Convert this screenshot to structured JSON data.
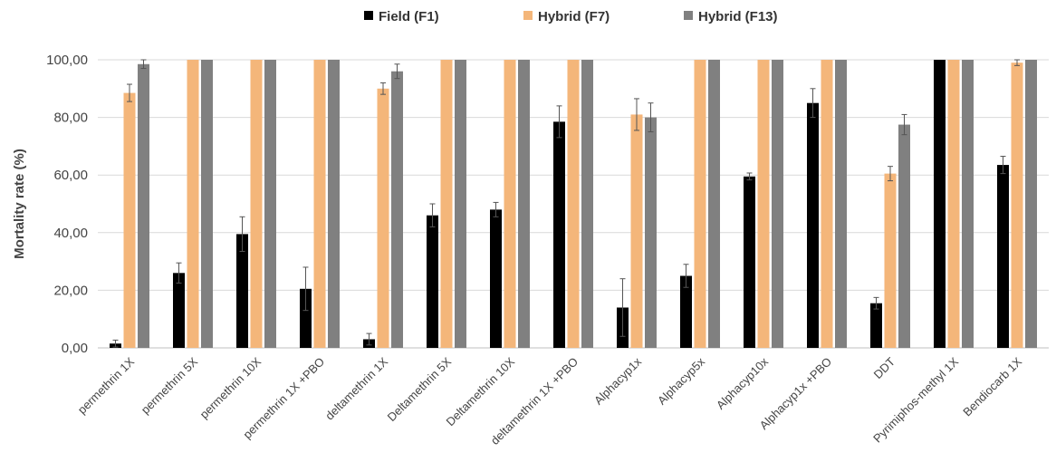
{
  "chart_data": {
    "type": "bar",
    "title": "",
    "xlabel": "",
    "ylabel": "Mortality rate (%)",
    "ylim": [
      0,
      100
    ],
    "yticks": [
      "0,00",
      "20,00",
      "40,00",
      "60,00",
      "80,00",
      "100,00"
    ],
    "grid": "horizontal",
    "legend_position": "top",
    "categories": [
      "permethrin 1X",
      "permethrin 5X",
      "permethrin 10X",
      "permethrin 1X +PBO",
      "deltamethrin 1X",
      "Deltamethrin 5X",
      "Deltamethrin 10X",
      "deltamethrin 1X +PBO",
      "Alphacyp1x",
      "Alphacyp5x",
      "Alphacyp10x",
      "Alphacyp1x +PBO",
      "DDT",
      "Pyrimiphos-methyl 1X",
      "Bendiocarb 1X"
    ],
    "series": [
      {
        "name": "Field (F1)",
        "color": "#000000",
        "values": [
          1.5,
          26,
          39.5,
          20.5,
          3,
          46,
          48,
          78.5,
          14,
          25,
          59.5,
          85,
          15.5,
          100,
          63.5
        ],
        "errors": [
          1.2,
          3.5,
          6,
          7.5,
          2,
          4,
          2.5,
          5.5,
          10,
          4,
          1.2,
          5,
          2,
          0,
          3
        ]
      },
      {
        "name": "Hybrid (F7)",
        "color": "#f4b67a",
        "values": [
          88.5,
          100,
          100,
          100,
          90,
          100,
          100,
          100,
          81,
          100,
          100,
          100,
          60.5,
          100,
          99
        ],
        "errors": [
          3,
          0,
          0,
          0,
          2,
          0,
          0,
          0,
          5.5,
          0,
          0,
          0,
          2.5,
          0,
          1
        ]
      },
      {
        "name": "Hybrid (F13)",
        "color": "#808080",
        "values": [
          98.5,
          100,
          100,
          100,
          96,
          100,
          100,
          100,
          80,
          100,
          100,
          100,
          77.5,
          100,
          100
        ],
        "errors": [
          1.5,
          0,
          0,
          0,
          2.5,
          0,
          0,
          0,
          5,
          0,
          0,
          0,
          3.5,
          0,
          0
        ]
      }
    ]
  }
}
